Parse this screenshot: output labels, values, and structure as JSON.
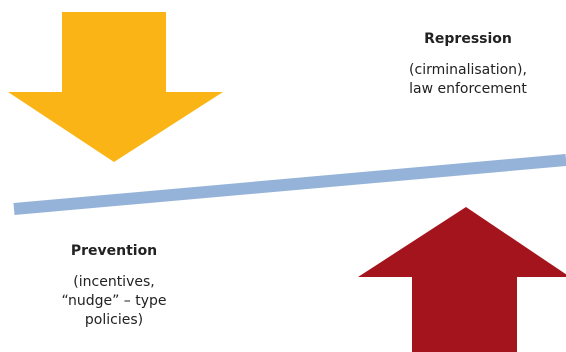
{
  "colors": {
    "down_arrow": "#FAB416",
    "up_arrow": "#A3141C",
    "beam": "#95B3D8"
  },
  "repression": {
    "title": "Repression",
    "description": "(cirminalisation),\nlaw enforcement"
  },
  "prevention": {
    "title": "Prevention",
    "description": "(incentives,\n“nudge” – type\npolicies)"
  }
}
